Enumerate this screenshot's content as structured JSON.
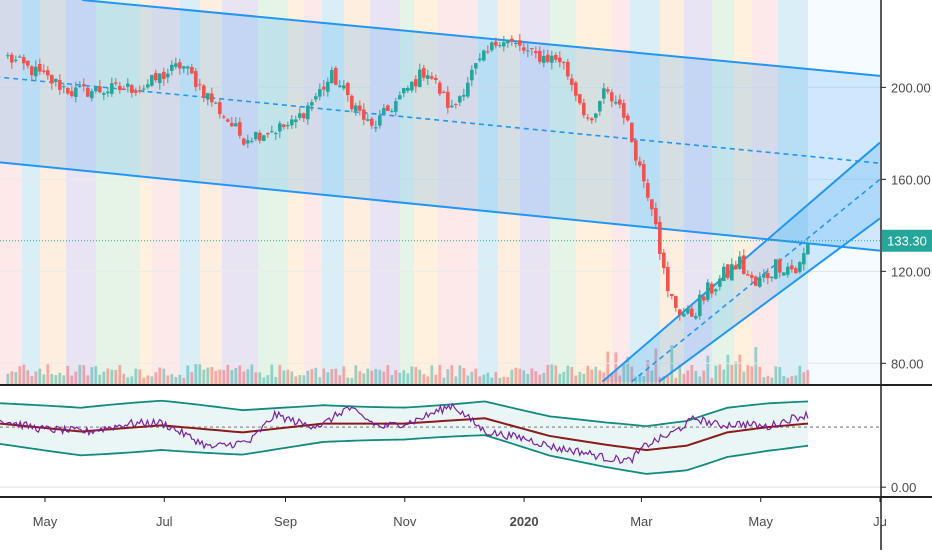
{
  "chart_data": [
    {
      "type": "candlestick",
      "title": "",
      "x_labels": [
        "May",
        "Jul",
        "Sep",
        "Nov",
        "2020",
        "Mar",
        "May",
        "Ju"
      ],
      "y_ticks": [
        "200.00",
        "160.00",
        "120.00",
        "80.00"
      ],
      "y_tick_values": [
        200,
        160,
        120,
        80
      ],
      "ylim": [
        71,
        238
      ],
      "last_price": 133.3,
      "last_price_label": "133.30",
      "colors": {
        "up": "#26a69a",
        "down": "#ef5350",
        "channel": "#2196f3",
        "price_tag": "#26a69a"
      },
      "key_points": [
        {
          "date": "2019-04-12",
          "price": 213
        },
        {
          "date": "2019-05-15",
          "price": 198
        },
        {
          "date": "2019-06-20",
          "price": 200
        },
        {
          "date": "2019-07-10",
          "price": 210
        },
        {
          "date": "2019-08-10",
          "price": 178
        },
        {
          "date": "2019-09-05",
          "price": 184
        },
        {
          "date": "2019-09-25",
          "price": 205
        },
        {
          "date": "2019-10-15",
          "price": 182
        },
        {
          "date": "2019-10-30",
          "price": 196
        },
        {
          "date": "2019-11-12",
          "price": 208
        },
        {
          "date": "2019-11-25",
          "price": 190
        },
        {
          "date": "2019-12-05",
          "price": 206
        },
        {
          "date": "2019-12-20",
          "price": 222
        },
        {
          "date": "2020-01-05",
          "price": 214
        },
        {
          "date": "2020-01-20",
          "price": 212
        },
        {
          "date": "2020-02-05",
          "price": 182
        },
        {
          "date": "2020-02-10",
          "price": 198
        },
        {
          "date": "2020-02-20",
          "price": 192
        },
        {
          "date": "2020-03-01",
          "price": 163
        },
        {
          "date": "2020-03-08",
          "price": 145
        },
        {
          "date": "2020-03-14",
          "price": 110
        },
        {
          "date": "2020-03-20",
          "price": 104
        },
        {
          "date": "2020-03-25",
          "price": 100
        },
        {
          "date": "2020-04-05",
          "price": 112
        },
        {
          "date": "2020-04-20",
          "price": 124
        },
        {
          "date": "2020-04-28",
          "price": 113
        },
        {
          "date": "2020-05-10",
          "price": 124
        },
        {
          "date": "2020-05-20",
          "price": 120
        },
        {
          "date": "2020-05-26",
          "price": 133.3
        }
      ],
      "channels": [
        {
          "name": "",
          "upper": [
            [
              "2019-05-20",
              238
            ],
            [
              "2020-07-01",
              205
            ]
          ],
          "middle": [
            [
              "2019-04-01",
              205
            ],
            [
              "2020-07-01",
              167
            ]
          ],
          "lower": [
            [
              "2019-04-01",
              168
            ],
            [
              "2020-07-01",
              129
            ]
          ]
        },
        {
          "name": "",
          "upper": [
            [
              "2020-02-10",
              72
            ],
            [
              "2020-07-01",
              176
            ]
          ],
          "middle": [
            [
              "2020-02-25",
              72
            ],
            [
              "2020-07-01",
              160
            ]
          ],
          "lower": [
            [
              "2020-03-10",
              72
            ],
            [
              "2020-07-01",
              143
            ]
          ]
        }
      ]
    },
    {
      "type": "line",
      "title": "",
      "y_ticks": [
        "0.00"
      ],
      "y_tick_values": [
        0
      ],
      "ylim": [
        -0.1,
        1.1
      ],
      "reference_level": 0.68,
      "series": [
        {
          "name": "",
          "color": "#7b1fa2",
          "points": [
            [
              0,
              0.76
            ],
            [
              0.05,
              0.66
            ],
            [
              0.11,
              0.63
            ],
            [
              0.16,
              0.72
            ],
            [
              0.2,
              0.73
            ],
            [
              0.26,
              0.45
            ],
            [
              0.31,
              0.52
            ],
            [
              0.34,
              0.82
            ],
            [
              0.38,
              0.7
            ],
            [
              0.4,
              0.71
            ],
            [
              0.43,
              0.9
            ],
            [
              0.47,
              0.68
            ],
            [
              0.51,
              0.74
            ],
            [
              0.56,
              0.93
            ],
            [
              0.6,
              0.63
            ],
            [
              0.65,
              0.55
            ],
            [
              0.69,
              0.44
            ],
            [
              0.72,
              0.4
            ],
            [
              0.75,
              0.33
            ],
            [
              0.78,
              0.3
            ],
            [
              0.8,
              0.48
            ],
            [
              0.83,
              0.6
            ],
            [
              0.86,
              0.78
            ],
            [
              0.89,
              0.7
            ],
            [
              0.92,
              0.72
            ],
            [
              0.95,
              0.68
            ],
            [
              0.98,
              0.78
            ],
            [
              1,
              0.82
            ]
          ]
        },
        {
          "name": "",
          "color": "#8b1a1a",
          "points": [
            [
              0,
              0.72
            ],
            [
              0.1,
              0.63
            ],
            [
              0.2,
              0.7
            ],
            [
              0.3,
              0.62
            ],
            [
              0.4,
              0.72
            ],
            [
              0.5,
              0.72
            ],
            [
              0.6,
              0.78
            ],
            [
              0.68,
              0.58
            ],
            [
              0.75,
              0.48
            ],
            [
              0.8,
              0.42
            ],
            [
              0.85,
              0.47
            ],
            [
              0.9,
              0.62
            ],
            [
              0.95,
              0.68
            ],
            [
              1,
              0.72
            ]
          ]
        }
      ]
    }
  ]
}
